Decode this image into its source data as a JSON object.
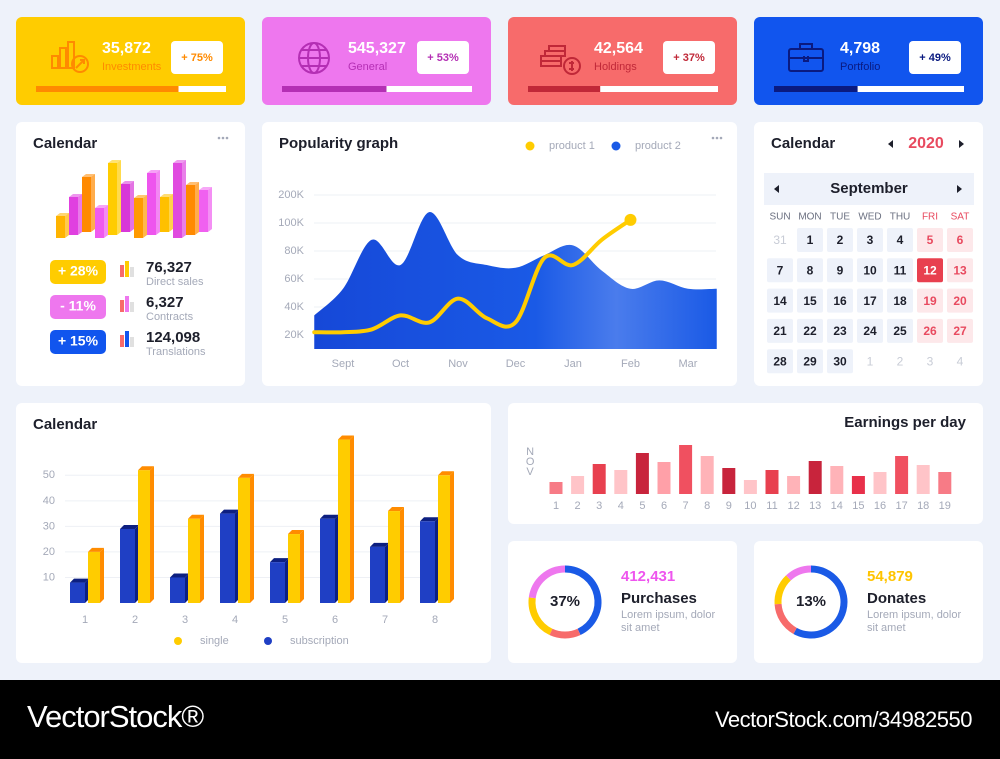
{
  "cards": [
    {
      "value": "35,872",
      "label": "Investments",
      "badge": "+ 75%",
      "progress": 75,
      "color": "#ffcc00",
      "accent": "#ff8a00"
    },
    {
      "value": "545,327",
      "label": "General",
      "badge": "+ 53%",
      "progress": 55,
      "color": "#ee77ee",
      "accent": "#b42fb4"
    },
    {
      "value": "42,564",
      "label": "Holdings",
      "badge": "+ 37%",
      "progress": 38,
      "color": "#f76b6b",
      "accent": "#c02838"
    },
    {
      "value": "4,798",
      "label": "Portfolio",
      "badge": "+ 49%",
      "progress": 44,
      "color": "#1155ee",
      "accent": "#0a1a80"
    }
  ],
  "stats_panel": {
    "title": "Calendar",
    "stats": [
      {
        "badge": "+ 28%",
        "value": "76,327",
        "label": "Direct sales",
        "color": "#ffcc00"
      },
      {
        "badge": "- 11%",
        "value": "6,327",
        "label": "Contracts",
        "color": "#ee77ee"
      },
      {
        "badge": "+ 15%",
        "value": "124,098",
        "label": "Translations",
        "color": "#1155ee"
      }
    ]
  },
  "calendar": {
    "title": "Calendar",
    "year": "2020",
    "month": "September",
    "weekdays": [
      "SUN",
      "MON",
      "TUE",
      "WED",
      "THU",
      "FRI",
      "SAT"
    ],
    "weeks": [
      [
        31,
        1,
        2,
        3,
        4,
        5,
        6
      ],
      [
        7,
        8,
        9,
        10,
        11,
        12,
        13
      ],
      [
        14,
        15,
        16,
        17,
        18,
        19,
        20
      ],
      [
        21,
        22,
        23,
        24,
        25,
        26,
        27
      ],
      [
        28,
        29,
        30,
        1,
        2,
        3,
        4
      ]
    ],
    "selected_day": 12
  },
  "chart_data": [
    {
      "type": "bar",
      "values": [
        22,
        38,
        55,
        30,
        72,
        48,
        40,
        62,
        35,
        75,
        50,
        42
      ],
      "colors": [
        "#ffb400",
        "#e040e0",
        "#ff8a00",
        "#f05af0",
        "#ffcc00",
        "#d838d8",
        "#ff9a00",
        "#ee55ee",
        "#ffc000",
        "#e04ae0",
        "#ff8a00",
        "#f060f0"
      ]
    },
    {
      "type": "line",
      "title": "Popularity graph",
      "categories": [
        null,
        "Sept",
        null,
        "Oct",
        null,
        "Nov",
        null,
        "Dec",
        null,
        "Jan",
        null,
        "Feb",
        null,
        "Mar",
        null
      ],
      "series": [
        {
          "name": "product 1",
          "color": "#ffcc00",
          "values": [
            22000,
            22000,
            24000,
            34000,
            29000,
            46000,
            32000,
            29000,
            75000,
            70000,
            88000,
            111000,
            null,
            null,
            null
          ]
        },
        {
          "name": "product 2",
          "color": "#1a5ae6",
          "fill": true,
          "values": [
            34000,
            53000,
            88000,
            70000,
            139000,
            77000,
            70000,
            68000,
            77000,
            84000,
            66000,
            53000,
            59000,
            53000,
            53000
          ]
        }
      ],
      "ylim": [
        10000,
        200000
      ],
      "yticks": [
        {
          "value": 200000,
          "label": "200K"
        },
        {
          "value": 100000,
          "label": "100K"
        },
        {
          "value": 80000,
          "label": "80K"
        },
        {
          "value": 60000,
          "label": "60K"
        },
        {
          "value": 40000,
          "label": "40K"
        },
        {
          "value": 20000,
          "label": "20K"
        }
      ],
      "grid": true
    },
    {
      "type": "bar",
      "title": "Calendar",
      "categories": [
        "1",
        "2",
        "3",
        "4",
        "5",
        "6",
        "7",
        "8"
      ],
      "series": [
        {
          "name": "single",
          "color": "#ffcc00",
          "side": "#ff8c00",
          "values": [
            20,
            52,
            33,
            49,
            27,
            64,
            36,
            50
          ]
        },
        {
          "name": "subscription",
          "color": "#1f3fc4",
          "side": "#0d1f80",
          "values": [
            8,
            29,
            10,
            35,
            16,
            33,
            22,
            32
          ]
        }
      ],
      "ylim": [
        0,
        65
      ],
      "yticks": [
        10,
        20,
        30,
        40,
        50
      ],
      "grid": true
    },
    {
      "type": "bar",
      "title": "Earnings per day",
      "axis_label": "NOV",
      "categories": [
        "1",
        "2",
        "3",
        "4",
        "5",
        "6",
        "7",
        "8",
        "9",
        "10",
        "11",
        "12",
        "13",
        "14",
        "15",
        "16",
        "17",
        "18",
        "19"
      ],
      "values": [
        12,
        18,
        30,
        24,
        41,
        32,
        49,
        38,
        26,
        14,
        24,
        18,
        33,
        28,
        18,
        22,
        38,
        29,
        22
      ],
      "colors": [
        "#f77b86",
        "#ffc4c8",
        "#e8404f",
        "#ffc4c8",
        "#c8243c",
        "#ffa0a8",
        "#f05060",
        "#ffb3b8",
        "#c8243c",
        "#ffc4c8",
        "#e8404f",
        "#ffb3b8",
        "#c8243c",
        "#ffb3b8",
        "#e8304a",
        "#ffc4c8",
        "#f05060",
        "#ffc4c8",
        "#f77b86"
      ]
    }
  ],
  "donut_cards": [
    {
      "center_label": "37%",
      "value": "412,431",
      "title": "Purchases",
      "text": [
        "Lorem ipsum, dolor",
        "sit amet"
      ],
      "color": "#ee55ee",
      "segments": [
        {
          "color": "#1a5ae6",
          "value": 43
        },
        {
          "color": "#f76b6b",
          "value": 14
        },
        {
          "color": "#ffcc00",
          "value": 20
        },
        {
          "color": "#ee77ee",
          "value": 23
        }
      ]
    },
    {
      "center_label": "13%",
      "value": "54,879",
      "title": "Donates",
      "text": [
        "Lorem ipsum, dolor",
        "sit amet"
      ],
      "color": "#ffc400",
      "segments": [
        {
          "color": "#1a5ae6",
          "value": 58
        },
        {
          "color": "#f76b6b",
          "value": 16
        },
        {
          "color": "#ffcc00",
          "value": 14
        },
        {
          "color": "#ee77ee",
          "value": 12
        }
      ]
    }
  ],
  "footer": {
    "brand": "VectorStock®",
    "url": "VectorStock.com/34982550"
  }
}
